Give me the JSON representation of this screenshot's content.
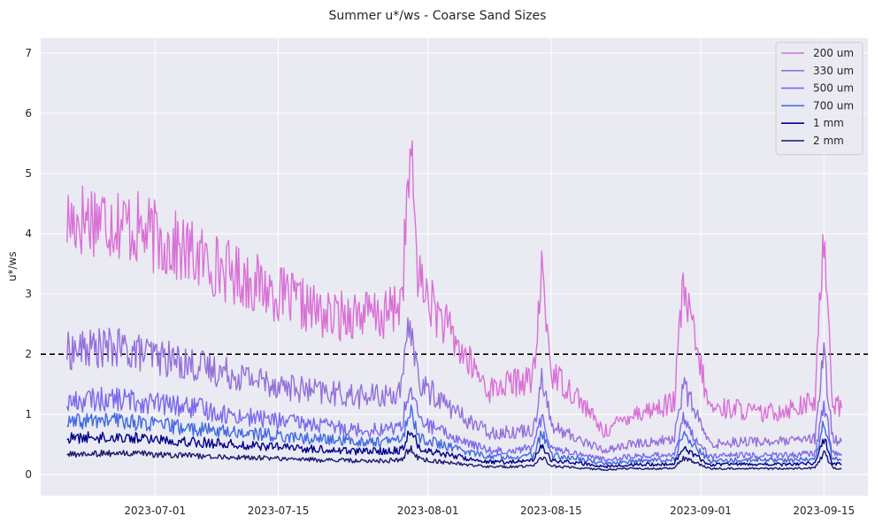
{
  "chart_data": {
    "type": "line",
    "title": "Summer u*/ws - Coarse Sand Sizes",
    "xlabel": "",
    "ylabel": "u*/ws",
    "x_range": [
      "2023-06-18",
      "2023-09-20"
    ],
    "ylim": [
      -0.35,
      7.25
    ],
    "x_ticks": [
      "2023-07-01",
      "2023-07-15",
      "2023-08-01",
      "2023-08-15",
      "2023-09-01",
      "2023-09-15"
    ],
    "y_ticks": [
      0,
      1,
      2,
      3,
      4,
      5,
      6,
      7
    ],
    "grid": true,
    "legend_position": "top-right",
    "reference_line": {
      "y": 2,
      "style": "dashed",
      "color": "#000000"
    },
    "data_start": "2023-06-21",
    "data_end": "2023-09-17",
    "x": [
      "2023-06-21",
      "2023-06-24",
      "2023-06-27",
      "2023-06-30",
      "2023-07-03",
      "2023-07-06",
      "2023-07-09",
      "2023-07-12",
      "2023-07-15",
      "2023-07-18",
      "2023-07-21",
      "2023-07-24",
      "2023-07-27",
      "2023-07-29",
      "2023-07-30",
      "2023-07-31",
      "2023-08-02",
      "2023-08-05",
      "2023-08-08",
      "2023-08-10",
      "2023-08-13",
      "2023-08-14",
      "2023-08-15",
      "2023-08-18",
      "2023-08-21",
      "2023-08-24",
      "2023-08-27",
      "2023-08-29",
      "2023-08-30",
      "2023-09-02",
      "2023-09-05",
      "2023-09-08",
      "2023-09-11",
      "2023-09-14",
      "2023-09-15",
      "2023-09-16",
      "2023-09-17"
    ],
    "series": [
      {
        "name": "200 um",
        "color": "#da70d6",
        "values": [
          4.2,
          4.3,
          4.2,
          4.0,
          3.8,
          3.6,
          3.4,
          3.2,
          3.0,
          2.8,
          2.6,
          2.7,
          2.6,
          2.9,
          5.3,
          3.2,
          2.7,
          2.0,
          1.4,
          1.5,
          1.6,
          3.4,
          1.7,
          1.3,
          0.7,
          1.0,
          1.1,
          1.2,
          3.1,
          1.1,
          1.1,
          1.0,
          1.1,
          1.2,
          4.2,
          1.2,
          1.1
        ]
      },
      {
        "name": "330 um",
        "color": "#9370db",
        "values": [
          2.05,
          2.1,
          2.1,
          2.0,
          1.9,
          1.8,
          1.7,
          1.6,
          1.5,
          1.4,
          1.35,
          1.3,
          1.3,
          1.4,
          2.6,
          1.5,
          1.3,
          0.95,
          0.7,
          0.7,
          0.75,
          1.7,
          0.8,
          0.6,
          0.4,
          0.5,
          0.55,
          0.6,
          1.5,
          0.5,
          0.55,
          0.55,
          0.55,
          0.6,
          2.0,
          0.6,
          0.55
        ]
      },
      {
        "name": "500 um",
        "color": "#7b68ee",
        "values": [
          1.2,
          1.25,
          1.25,
          1.2,
          1.15,
          1.1,
          1.0,
          0.95,
          0.9,
          0.85,
          0.8,
          0.75,
          0.75,
          0.8,
          1.5,
          0.9,
          0.75,
          0.55,
          0.4,
          0.4,
          0.45,
          1.0,
          0.45,
          0.35,
          0.25,
          0.3,
          0.32,
          0.35,
          0.9,
          0.3,
          0.32,
          0.32,
          0.32,
          0.35,
          1.2,
          0.35,
          0.32
        ]
      },
      {
        "name": "700 um",
        "color": "#4169e1",
        "values": [
          0.85,
          0.9,
          0.9,
          0.85,
          0.8,
          0.75,
          0.72,
          0.68,
          0.65,
          0.6,
          0.58,
          0.55,
          0.55,
          0.58,
          1.05,
          0.62,
          0.52,
          0.4,
          0.3,
          0.3,
          0.32,
          0.7,
          0.33,
          0.26,
          0.18,
          0.22,
          0.24,
          0.25,
          0.65,
          0.22,
          0.24,
          0.24,
          0.24,
          0.26,
          0.85,
          0.26,
          0.24
        ]
      },
      {
        "name": "1 mm",
        "color": "#00008b",
        "values": [
          0.6,
          0.62,
          0.62,
          0.6,
          0.57,
          0.54,
          0.51,
          0.48,
          0.46,
          0.43,
          0.41,
          0.39,
          0.39,
          0.41,
          0.75,
          0.44,
          0.37,
          0.28,
          0.21,
          0.21,
          0.23,
          0.5,
          0.24,
          0.19,
          0.13,
          0.16,
          0.17,
          0.18,
          0.46,
          0.16,
          0.17,
          0.17,
          0.17,
          0.19,
          0.6,
          0.19,
          0.17
        ]
      },
      {
        "name": "2 mm",
        "color": "#191970",
        "values": [
          0.33,
          0.35,
          0.35,
          0.34,
          0.32,
          0.31,
          0.29,
          0.28,
          0.27,
          0.25,
          0.24,
          0.23,
          0.23,
          0.24,
          0.45,
          0.26,
          0.22,
          0.17,
          0.13,
          0.13,
          0.14,
          0.3,
          0.14,
          0.11,
          0.08,
          0.1,
          0.1,
          0.11,
          0.28,
          0.1,
          0.1,
          0.1,
          0.1,
          0.11,
          0.36,
          0.11,
          0.1
        ]
      }
    ]
  }
}
